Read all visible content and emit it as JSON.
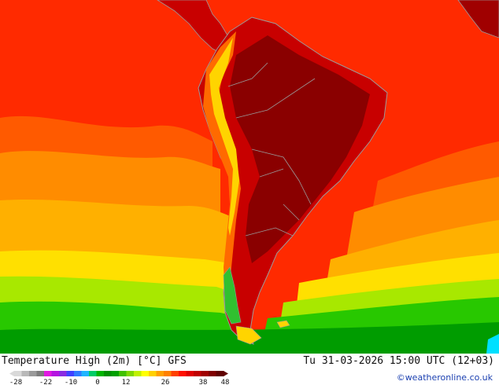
{
  "footer": {
    "title": "Temperature High (2m) [°C] GFS",
    "datetime": "Tu 31-03-2026 15:00 UTC (12+03)",
    "credit": "©weatheronline.co.uk"
  },
  "legend": {
    "ticks": [
      "-28",
      "-22",
      "-10",
      "0",
      "12",
      "26",
      "38",
      "48"
    ],
    "colors": [
      "#d9d9d9",
      "#b8b8b8",
      "#9a9a9a",
      "#7c7c7c",
      "#e018e0",
      "#b413e0",
      "#8a2be2",
      "#4040ff",
      "#2f7bff",
      "#1fb4ff",
      "#00cc66",
      "#00b400",
      "#009000",
      "#00a000",
      "#40c000",
      "#80d800",
      "#c0f000",
      "#ffff00",
      "#ffd000",
      "#ffa000",
      "#ff8000",
      "#ff4000",
      "#ff1000",
      "#e00000",
      "#c00000",
      "#a00000",
      "#800000",
      "#600000"
    ]
  },
  "map": {
    "palette": {
      "ocean_hot": "#ff2a00",
      "ocean_warm": "#ff5a00",
      "ocean_orange": "#ff8c00",
      "ocean_amber": "#ffb000",
      "ocean_yellow": "#ffe000",
      "ocean_lime": "#a8e800",
      "ocean_green": "#28c800",
      "ocean_dkgreen": "#009c00",
      "land_dark": "#8a0000",
      "land_red": "#c80000",
      "land_orange": "#ff6a00",
      "andes_yellow": "#ffd400",
      "andes_green": "#30c030",
      "cold_cyan": "#00e0ff",
      "border": "#9a9a9a"
    }
  }
}
